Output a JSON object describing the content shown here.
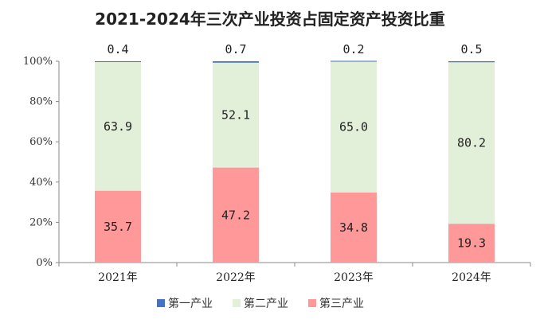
{
  "chart_data": {
    "type": "bar",
    "stacked": true,
    "title": "2021-2024年三次产业投资占固定资产投资比重",
    "categories": [
      "2021年",
      "2022年",
      "2023年",
      "2024年"
    ],
    "ylim": [
      0,
      100
    ],
    "yticks": [
      "0%",
      "20%",
      "40%",
      "60%",
      "80%",
      "100%"
    ],
    "series": [
      {
        "name": "第三产业",
        "values": [
          35.7,
          47.2,
          34.8,
          19.3
        ],
        "labels": [
          "35.7",
          "47.2",
          "34.8",
          "19.3"
        ],
        "color": "#ff9999"
      },
      {
        "name": "第二产业",
        "values": [
          63.9,
          52.1,
          65.0,
          80.2
        ],
        "labels": [
          "63.9",
          "52.1",
          "65.0",
          "80.2"
        ],
        "color": "#e2efd9"
      },
      {
        "name": "第一产业",
        "values": [
          0.4,
          0.7,
          0.2,
          0.5
        ],
        "labels": [
          "0.4",
          "0.7",
          "0.2",
          "0.5"
        ],
        "color": "#4472c4"
      }
    ],
    "legend_order": [
      "第一产业",
      "第二产业",
      "第三产业"
    ],
    "legend_position": "bottom",
    "grid": false
  }
}
